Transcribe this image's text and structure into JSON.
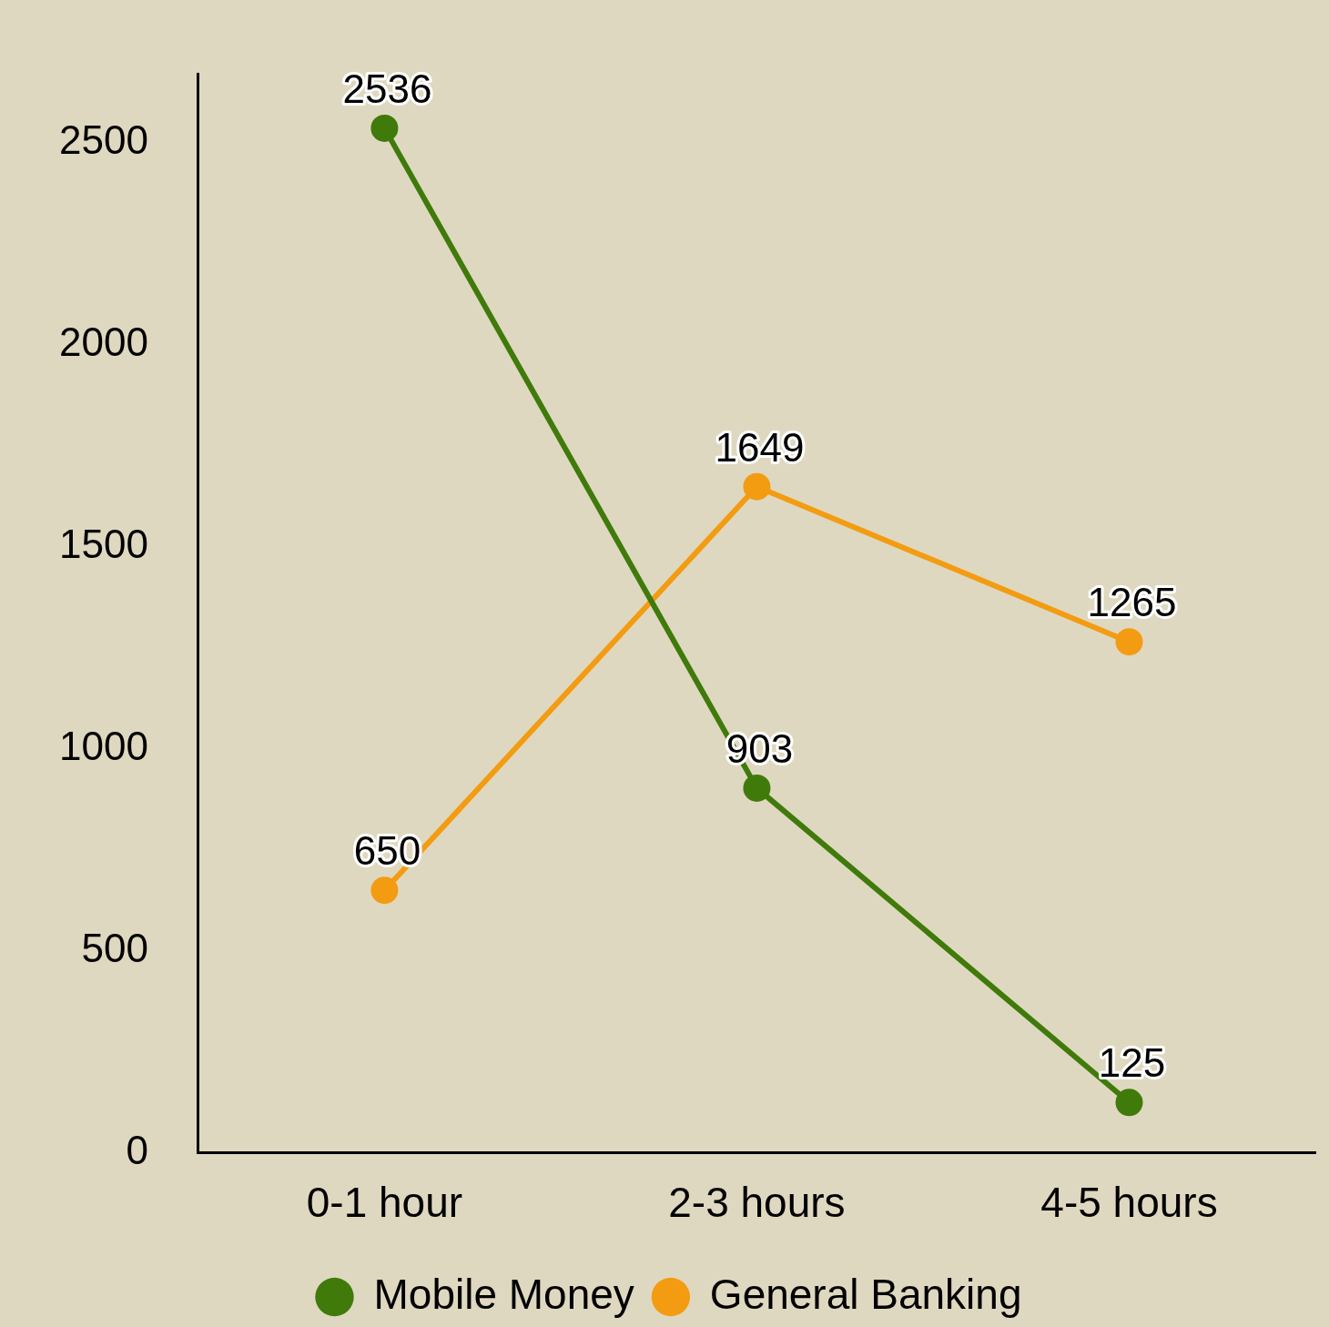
{
  "chart_data": {
    "type": "line",
    "categories": [
      "0-1 hour",
      "2-3 hours",
      "4-5 hours"
    ],
    "series": [
      {
        "name": "Mobile Money",
        "color": "#3f7a0a",
        "values": [
          2536,
          903,
          125
        ]
      },
      {
        "name": "General Banking",
        "color": "#f39c12",
        "values": [
          650,
          1649,
          1265
        ]
      }
    ],
    "ylim": [
      0,
      2670
    ],
    "yticks": [
      0,
      500,
      1000,
      1500,
      2000,
      2500
    ],
    "grid": false,
    "legend": "bottom",
    "marker": "circle",
    "line_style": "solid",
    "data_labels": true
  }
}
